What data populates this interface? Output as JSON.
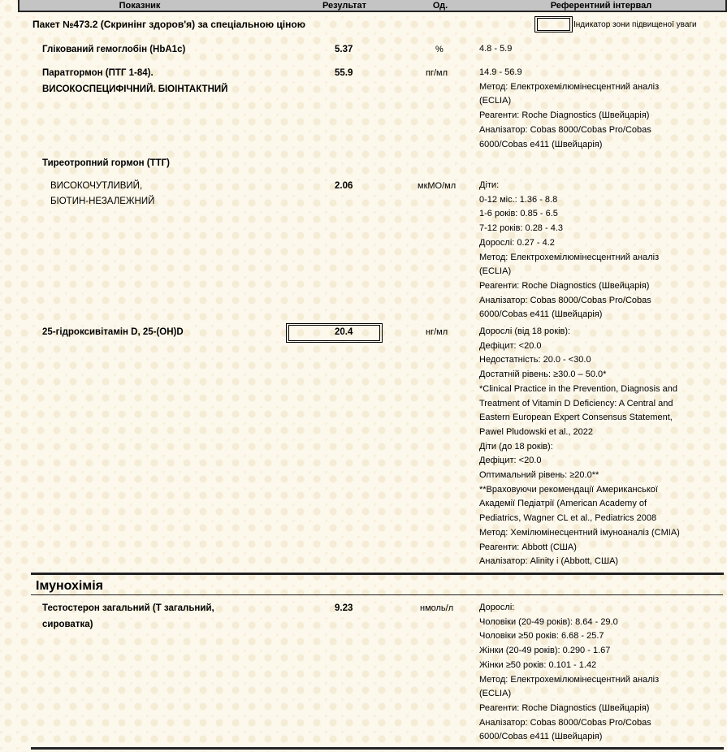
{
  "header": {
    "col_name": "Показник",
    "col_result": "Результат",
    "col_unit": "Од.",
    "col_ref": "Референтний інтервал"
  },
  "package_title": "Пакет №473.2 (Скринінг здоров'я) за спеціальною ціною",
  "indicator_legend": "Індикатор зони підвищеної уваги",
  "section_title": "Імунохімія",
  "rows": [
    {
      "name": "Глікований гемоглобін (HbA1c)",
      "result": "5.37",
      "unit": "%",
      "ref": [
        "4.8 - 5.9"
      ]
    },
    {
      "name": "Паратгормон (ПТГ 1-84).",
      "name2": "ВИСОКОСПЕЦИФІЧНИЙ. БІОІНТАКТНИЙ",
      "result": "55.9",
      "unit": "пг/мл",
      "ref": [
        "14.9 - 56.9",
        "Метод: Електрохемілюмінесцентний аналіз",
        "(ECLIA)",
        "Реагенти: Roche Diagnostics (Швейцарія)",
        "Аналізатор: Cobas 8000/Cobas Pro/Cobas",
        "6000/Cobas e411 (Швейцарія)"
      ]
    },
    {
      "name": "Тиреотропний гормон (ТТГ)",
      "sub1": "ВИСОКОЧУТЛИВИЙ,",
      "sub2": "БІОТИН-НЕЗАЛЕЖНИЙ",
      "result": "2.06",
      "unit": "мкМО/мл",
      "ref": [
        "Діти:",
        "0-12 міс.: 1.36 - 8.8",
        "1-6 років: 0.85 - 6.5",
        "7-12 років: 0.28 - 4.3",
        "Дорослі: 0.27 - 4.2",
        "Метод: Електрохемілюмінесцентний аналіз",
        "(ECLIA)",
        "Реагенти: Roche Diagnostics (Швейцарія)",
        "Аналізатор: Cobas 8000/Cobas Pro/Cobas",
        "6000/Cobas e411 (Швейцарія)"
      ]
    },
    {
      "name": "25-гідроксивітамін D, 25-(OH)D",
      "result": "20.4",
      "unit": "нг/мл",
      "flagged": true,
      "ref": [
        "Дорослі (від 18 років):",
        "Дефіцит: <20.0",
        "Недостатність: 20.0 - <30.0",
        "Достатній рівень: ≥30.0 – 50.0*",
        "*Clinical Practice in the Prevention, Diagnosis and",
        "Treatment of Vitamin D Deficiency: A Central and",
        "Eastern European Expert Consensus Statement,",
        "Pawel Pludowski et al., 2022",
        "Діти (до 18 років):",
        "Дефіцит: <20.0",
        "Оптимальний рівень: ≥20.0**",
        "**Враховуючи рекомендації Американської",
        "Академії Педіатрії (American Academy of",
        "Pediatrics, Wagner CL et al., Pediatrics 2008",
        "Метод: Хемілюмінесцентний імуноаналіз (CMIA)",
        "Реагенти: Abbott (США)",
        "Аналізатор: Alinity i (Abbott, США)"
      ]
    },
    {
      "name": "Тестостерон загальний (Т загальний,",
      "name2": "сироватка)",
      "result": "9.23",
      "unit": "нмоль/л",
      "ref": [
        "Дорослі:",
        "Чоловіки (20-49 років): 8.64 - 29.0",
        "Чоловіки ≥50 років: 6.68 - 25.7",
        "Жінки (20-49 років): 0.290 - 1.67",
        "Жінки ≥50 років: 0.101 - 1.42",
        "Метод: Електрохемілюмінесцентний аналіз",
        "(ECLIA)",
        "Реагенти: Roche Diagnostics (Швейцарія)",
        "Аналізатор: Cobas 8000/Cobas Pro/Cobas",
        "6000/Cobas e411 (Швейцарія)"
      ]
    }
  ]
}
